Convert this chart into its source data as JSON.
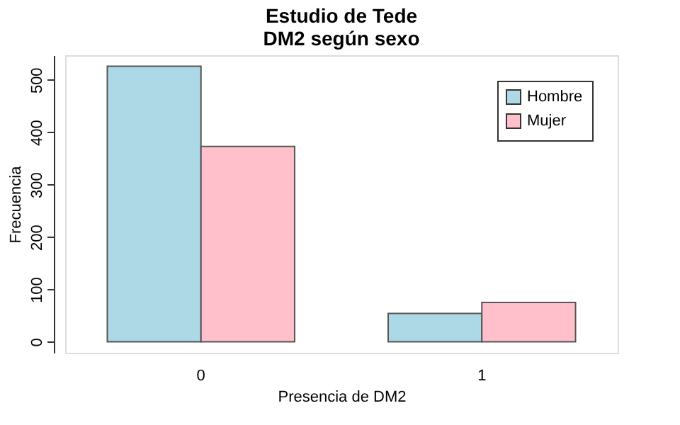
{
  "chart_data": {
    "type": "bar",
    "title": "Estudio de Tede\nDM2 según sexo",
    "xlabel": "Presencia de DM2",
    "ylabel": "Frecuencia",
    "categories": [
      "0",
      "1"
    ],
    "series": [
      {
        "name": "Hombre",
        "color": "#add8e6",
        "values": [
          526,
          54
        ]
      },
      {
        "name": "Mujer",
        "color": "#ffc0cb",
        "values": [
          373,
          75
        ]
      }
    ],
    "ylim": [
      -21,
      547
    ],
    "yticks": [
      0,
      100,
      200,
      300,
      400,
      500
    ],
    "grid": false,
    "legend": "top right"
  }
}
